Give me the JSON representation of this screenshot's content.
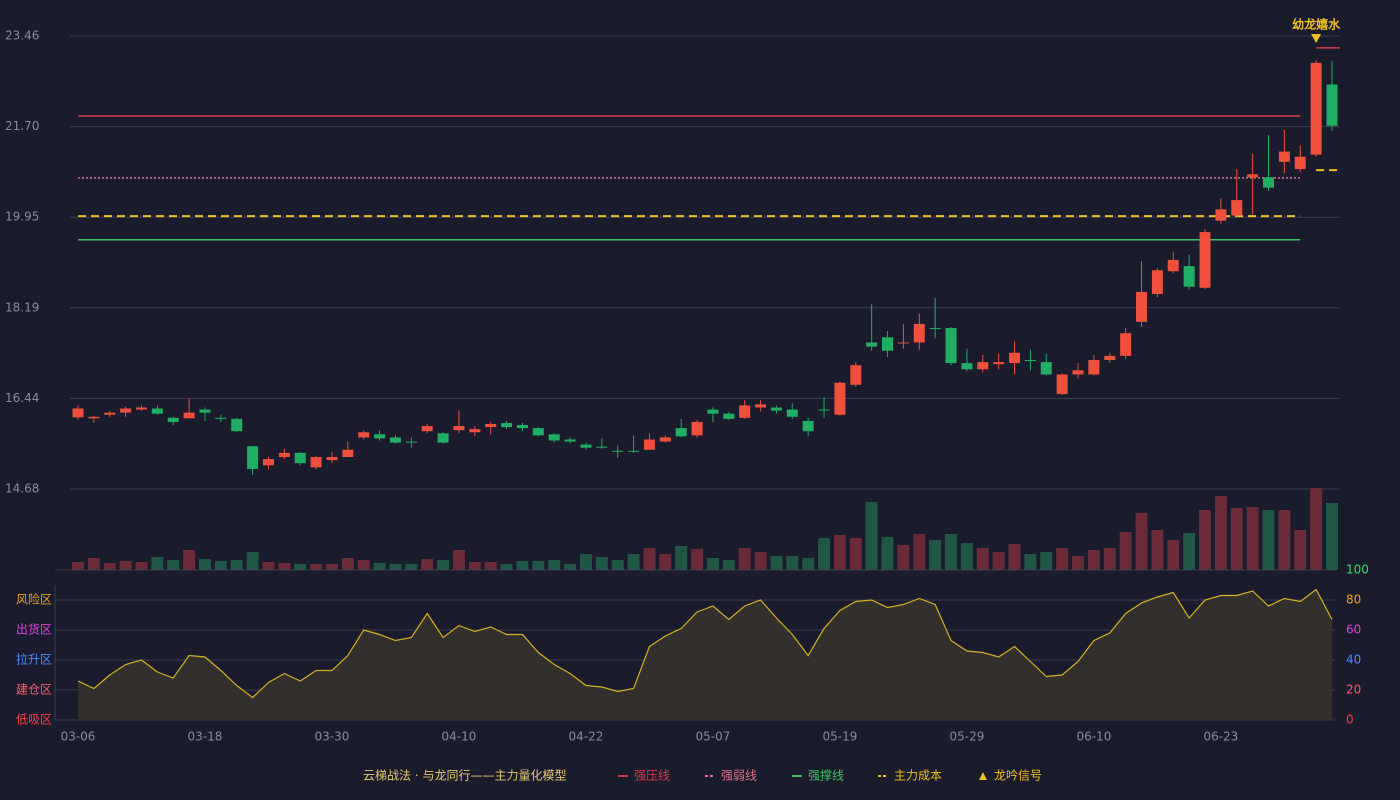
{
  "chart_data": {
    "type": "candlestick",
    "categories": [
      "03-06",
      null,
      null,
      null,
      null,
      null,
      null,
      null,
      "03-18",
      null,
      null,
      null,
      null,
      null,
      null,
      null,
      "03-30",
      null,
      null,
      null,
      null,
      null,
      null,
      null,
      "04-10",
      null,
      null,
      null,
      null,
      null,
      null,
      null,
      "04-22",
      null,
      null,
      null,
      null,
      null,
      null,
      null,
      "05-07",
      null,
      null,
      null,
      null,
      null,
      null,
      null,
      "05-19",
      null,
      null,
      null,
      null,
      null,
      null,
      null,
      "05-29",
      null,
      null,
      null,
      null,
      null,
      null,
      null,
      "06-10",
      null,
      null,
      null,
      null,
      null,
      null,
      null,
      "06-23",
      null,
      null,
      null,
      null,
      null,
      null,
      null
    ],
    "open": [
      16.07,
      16.05,
      16.12,
      16.16,
      16.22,
      16.24,
      16.06,
      16.05,
      16.22,
      16.06,
      16.04,
      15.51,
      15.14,
      15.3,
      15.38,
      15.1,
      15.24,
      15.3,
      15.68,
      15.74,
      15.68,
      15.6,
      15.8,
      15.76,
      15.82,
      15.78,
      15.88,
      15.96,
      15.92,
      15.86,
      15.74,
      15.64,
      15.54,
      15.5,
      15.42,
      15.42,
      15.44,
      15.6,
      15.86,
      15.72,
      16.22,
      16.14,
      16.06,
      16.26,
      16.26,
      16.22,
      16.0,
      16.22,
      16.12,
      16.7,
      17.52,
      17.62,
      17.5,
      17.52,
      17.8,
      17.8,
      17.12,
      17.0,
      17.1,
      17.12,
      17.18,
      17.14,
      16.52,
      16.9,
      16.9,
      17.18,
      17.26,
      17.92,
      18.46,
      18.9,
      19.0,
      18.58,
      19.88,
      19.98,
      20.72,
      20.72,
      21.02,
      20.88,
      21.16,
      22.52
    ],
    "high": [
      16.3,
      16.1,
      16.2,
      16.28,
      16.3,
      16.3,
      16.08,
      16.44,
      16.26,
      16.12,
      16.06,
      15.52,
      15.3,
      15.46,
      15.4,
      15.32,
      15.4,
      15.6,
      15.82,
      15.82,
      15.72,
      15.68,
      15.94,
      15.78,
      16.2,
      15.9,
      15.98,
      16.0,
      15.96,
      15.88,
      15.76,
      15.68,
      15.58,
      15.66,
      15.52,
      15.72,
      15.76,
      15.72,
      16.04,
      16.02,
      16.26,
      16.18,
      16.4,
      16.4,
      16.3,
      16.34,
      16.06,
      16.46,
      16.76,
      17.14,
      18.26,
      17.74,
      17.88,
      18.08,
      18.38,
      17.82,
      17.4,
      17.28,
      17.3,
      17.54,
      17.38,
      17.3,
      16.92,
      17.12,
      17.28,
      17.32,
      17.8,
      19.1,
      18.96,
      19.28,
      19.22,
      19.72,
      20.32,
      20.88,
      21.18,
      21.54,
      21.64,
      21.34,
      23.0,
      22.98
    ],
    "low": [
      16.03,
      15.96,
      16.08,
      16.08,
      16.2,
      16.12,
      15.92,
      16.05,
      16.0,
      15.98,
      15.78,
      14.95,
      15.06,
      15.26,
      15.14,
      15.06,
      15.18,
      15.3,
      15.64,
      15.62,
      15.56,
      15.48,
      15.76,
      15.56,
      15.76,
      15.7,
      15.74,
      15.84,
      15.8,
      15.7,
      15.58,
      15.56,
      15.44,
      15.46,
      15.28,
      15.38,
      15.44,
      15.58,
      15.68,
      15.68,
      15.98,
      16.02,
      16.04,
      16.18,
      16.14,
      16.04,
      15.7,
      16.06,
      16.1,
      16.66,
      17.36,
      17.24,
      17.4,
      17.38,
      17.6,
      17.08,
      16.96,
      16.94,
      17.0,
      16.9,
      16.98,
      16.88,
      16.5,
      16.82,
      16.88,
      17.12,
      17.2,
      17.82,
      18.4,
      18.86,
      18.54,
      18.56,
      19.82,
      19.96,
      20.0,
      20.46,
      20.8,
      20.82,
      21.12,
      21.62
    ],
    "close": [
      16.24,
      16.08,
      16.16,
      16.24,
      16.26,
      16.14,
      15.98,
      16.16,
      16.16,
      16.04,
      15.8,
      15.07,
      15.26,
      15.38,
      15.18,
      15.3,
      15.3,
      15.44,
      15.78,
      15.66,
      15.58,
      15.58,
      15.9,
      15.58,
      15.9,
      15.84,
      15.94,
      15.88,
      15.86,
      15.72,
      15.62,
      15.6,
      15.48,
      15.48,
      15.4,
      15.4,
      15.64,
      15.68,
      15.7,
      15.98,
      16.14,
      16.04,
      16.3,
      16.32,
      16.2,
      16.08,
      15.8,
      16.2,
      16.74,
      17.08,
      17.44,
      17.36,
      17.52,
      17.88,
      17.78,
      17.12,
      17.0,
      17.14,
      17.14,
      17.32,
      17.16,
      16.9,
      16.9,
      16.98,
      17.18,
      17.26,
      17.7,
      18.5,
      18.92,
      19.12,
      18.6,
      19.66,
      20.1,
      20.28,
      20.78,
      20.52,
      21.22,
      21.12,
      22.94,
      21.72
    ],
    "ylim": [
      14.68,
      23.46
    ],
    "yticks": [
      {
        "value": 14.68,
        "label": "14.68"
      },
      {
        "value": 16.436,
        "label": "16.44"
      },
      {
        "value": 18.192,
        "label": "18.19"
      },
      {
        "value": 19.948,
        "label": "19.95"
      },
      {
        "value": 21.704,
        "label": "21.70"
      },
      {
        "value": 23.46,
        "label": "23.46"
      }
    ],
    "grid": true,
    "up_color": "#ef4f3d",
    "down_color": "#1fae63",
    "levels": [
      {
        "name": "强压线",
        "color": "#d83a4a",
        "style": "solid",
        "segments": [
          {
            "value": 21.91,
            "from": 0,
            "to": 77
          },
          {
            "value": 23.23,
            "from": 78,
            "to": 79
          }
        ]
      },
      {
        "name": "强弱线",
        "color": "#e07088",
        "style": "dotted",
        "segments": [
          {
            "value": 20.71,
            "from": 0,
            "to": 77
          }
        ]
      },
      {
        "name": "强撑线",
        "color": "#3ec060",
        "style": "solid",
        "segments": [
          {
            "value": 19.51,
            "from": 0,
            "to": 77
          }
        ]
      },
      {
        "name": "主力成本",
        "color": "#f0c020",
        "style": "dashed",
        "segments": [
          {
            "value": 19.97,
            "from": 0,
            "to": 77
          },
          {
            "value": 20.86,
            "from": 78,
            "to": 79
          }
        ]
      }
    ],
    "volume": {
      "values": [
        8,
        12,
        7,
        9,
        8,
        13,
        10,
        20,
        11,
        9,
        10,
        18,
        8,
        7,
        6,
        6,
        6,
        12,
        10,
        7,
        6,
        6,
        11,
        10,
        20,
        8,
        8,
        6,
        9,
        9,
        10,
        6,
        16,
        13,
        10,
        16,
        22,
        16,
        24,
        21,
        12,
        10,
        22,
        18,
        14,
        14,
        12,
        32,
        35,
        32,
        68,
        33,
        25,
        36,
        30,
        36,
        27,
        22,
        18,
        26,
        16,
        18,
        22,
        14,
        20,
        22,
        38,
        57,
        40,
        30,
        37,
        60,
        74,
        62,
        63,
        60,
        60,
        40,
        82,
        67
      ]
    },
    "oscillator": {
      "values": [
        26,
        21,
        30,
        37,
        40,
        32,
        28,
        43,
        42,
        33,
        23,
        15,
        25,
        31,
        26,
        33,
        33,
        43,
        60,
        57,
        53,
        55,
        71,
        55,
        63,
        59,
        62,
        57,
        57,
        45,
        37,
        31,
        23,
        22,
        19,
        21,
        49,
        56,
        61,
        72,
        76,
        67,
        76,
        80,
        68,
        57,
        43,
        61,
        73,
        79,
        80,
        75,
        77,
        81,
        77,
        53,
        46,
        45,
        42,
        49,
        39,
        29,
        30,
        39,
        53,
        58,
        71,
        78,
        82,
        85,
        68,
        80,
        83,
        83,
        86,
        76,
        81,
        79,
        87,
        67
      ],
      "ylim": [
        0,
        100
      ],
      "yticks": [
        0,
        20,
        40,
        60,
        80,
        100
      ],
      "tick_colors": [
        "#ff3a4a",
        "#ff5a6a",
        "#4a8cff",
        "#e040e0",
        "#f0a020",
        "#30e060"
      ],
      "zones": [
        {
          "label": "风险区",
          "value": 80,
          "color": "#f0a020"
        },
        {
          "label": "出货区",
          "value": 60,
          "color": "#e040e0"
        },
        {
          "label": "拉升区",
          "value": 40,
          "color": "#4a8cff"
        },
        {
          "label": "建仓区",
          "value": 20,
          "color": "#ff5a6a"
        },
        {
          "label": "低吸区",
          "value": 0,
          "color": "#ff3a4a"
        }
      ]
    },
    "signal": {
      "label": "幼龙嬉水",
      "index": 78,
      "color": "#f0c020",
      "legend": "龙吟信号"
    },
    "legend_title": "云梯战法 · 与龙同行——主力量化模型"
  }
}
